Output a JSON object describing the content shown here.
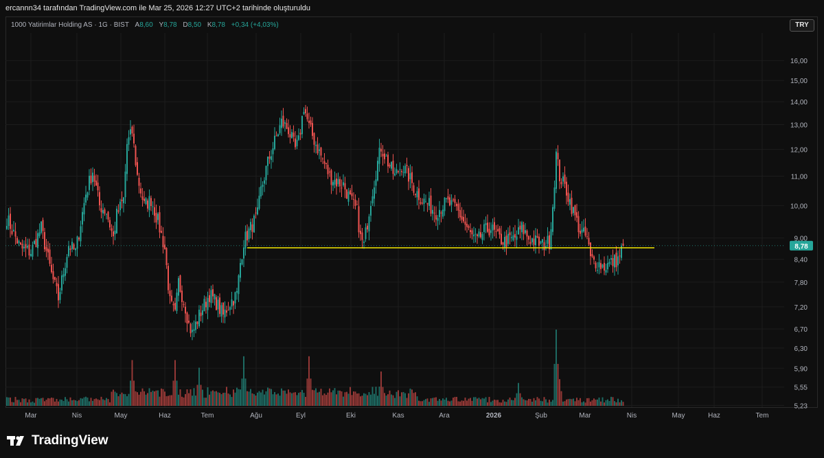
{
  "caption": "ercannn34 tarafından TradingView.com ile Mar 25, 2026 12:27 UTC+2 tarihinde oluşturuldu",
  "legend": {
    "title": "1000 Yatirimlar Holding AS · 1G · BIST",
    "a_label": "A",
    "a_val": "8,60",
    "y_label": "Y",
    "y_val": "8,78",
    "d_label": "D",
    "d_val": "8,50",
    "k_label": "K",
    "k_val": "8,78",
    "change": "+0,34 (+4,03%)"
  },
  "currency": "TRY",
  "brand": "TradingView",
  "colors": {
    "up": "#26a69a",
    "down": "#ef5350",
    "support": "#f2e600",
    "grid": "#1c1c1c"
  },
  "chart_data": {
    "type": "candlestick",
    "title": "1000 Yatirimlar Holding AS · 1G · BIST",
    "scale": "log",
    "ylim": [
      5.2,
      17.5
    ],
    "y_ticks": [
      "16,00",
      "15,00",
      "14,00",
      "13,00",
      "12,00",
      "11,00",
      "10,00",
      "9,00",
      "8,40",
      "7,80",
      "7,20",
      "6,70",
      "6,30",
      "5,90",
      "5,55",
      "5,23"
    ],
    "y_tick_values": [
      16.0,
      15.0,
      14.0,
      13.0,
      12.0,
      11.0,
      10.0,
      9.0,
      8.4,
      7.8,
      7.2,
      6.7,
      6.3,
      5.9,
      5.55,
      5.23
    ],
    "x_ticks": [
      "Mar",
      "Nis",
      "May",
      "Haz",
      "Tem",
      "Ağu",
      "Eyl",
      "Eki",
      "Kas",
      "Ara",
      "2026",
      "Şub",
      "Mar",
      "Nis",
      "May",
      "Haz",
      "Tem"
    ],
    "last_price_label": "8,78",
    "last_price": 8.78,
    "support_level": 8.72,
    "anchors": [
      [
        0,
        9.6
      ],
      [
        8,
        8.7
      ],
      [
        14,
        8.6
      ],
      [
        20,
        9.3
      ],
      [
        26,
        8.0
      ],
      [
        30,
        7.4
      ],
      [
        36,
        8.8
      ],
      [
        40,
        8.6
      ],
      [
        46,
        10.4
      ],
      [
        50,
        11.2
      ],
      [
        54,
        10.0
      ],
      [
        58,
        9.8
      ],
      [
        62,
        9.0
      ],
      [
        64,
        9.7
      ],
      [
        68,
        10.2
      ],
      [
        70,
        12.2
      ],
      [
        73,
        12.7
      ],
      [
        76,
        11.0
      ],
      [
        80,
        10.0
      ],
      [
        84,
        10.2
      ],
      [
        88,
        9.5
      ],
      [
        92,
        8.7
      ],
      [
        95,
        7.3
      ],
      [
        98,
        7.0
      ],
      [
        100,
        7.8
      ],
      [
        104,
        7.2
      ],
      [
        106,
        6.8
      ],
      [
        108,
        6.6
      ],
      [
        112,
        7.0
      ],
      [
        118,
        7.5
      ],
      [
        122,
        7.3
      ],
      [
        126,
        7.0
      ],
      [
        130,
        7.3
      ],
      [
        134,
        7.5
      ],
      [
        136,
        8.3
      ],
      [
        138,
        8.9
      ],
      [
        142,
        9.3
      ],
      [
        146,
        9.7
      ],
      [
        148,
        10.5
      ],
      [
        152,
        11.5
      ],
      [
        156,
        12.3
      ],
      [
        160,
        13.1
      ],
      [
        164,
        12.8
      ],
      [
        168,
        12.0
      ],
      [
        170,
        12.3
      ],
      [
        173,
        13.8
      ],
      [
        176,
        12.9
      ],
      [
        180,
        12.2
      ],
      [
        184,
        11.6
      ],
      [
        188,
        11.0
      ],
      [
        192,
        10.8
      ],
      [
        196,
        10.7
      ],
      [
        200,
        10.2
      ],
      [
        204,
        9.8
      ],
      [
        206,
        9.0
      ],
      [
        208,
        8.8
      ],
      [
        212,
        10.2
      ],
      [
        216,
        11.5
      ],
      [
        218,
        12.1
      ],
      [
        222,
        11.5
      ],
      [
        226,
        11.0
      ],
      [
        230,
        11.4
      ],
      [
        234,
        11.0
      ],
      [
        238,
        10.5
      ],
      [
        242,
        10.2
      ],
      [
        246,
        10.0
      ],
      [
        250,
        9.8
      ],
      [
        256,
        10.1
      ],
      [
        262,
        9.9
      ],
      [
        266,
        9.5
      ],
      [
        270,
        9.1
      ],
      [
        274,
        8.9
      ],
      [
        278,
        9.2
      ],
      [
        282,
        9.3
      ],
      [
        286,
        9.0
      ],
      [
        290,
        8.9
      ],
      [
        296,
        9.0
      ],
      [
        300,
        9.3
      ],
      [
        304,
        9.0
      ],
      [
        308,
        8.9
      ],
      [
        312,
        8.8
      ],
      [
        316,
        8.9
      ],
      [
        318,
        10.0
      ],
      [
        320,
        11.8
      ],
      [
        322,
        11.0
      ],
      [
        326,
        10.5
      ],
      [
        330,
        9.8
      ],
      [
        334,
        9.2
      ],
      [
        338,
        9.0
      ],
      [
        340,
        8.4
      ],
      [
        344,
        8.3
      ],
      [
        348,
        8.2
      ],
      [
        352,
        8.3
      ],
      [
        356,
        8.4
      ],
      [
        359,
        8.78
      ]
    ],
    "volume_spikes": [
      [
        73,
        0.6
      ],
      [
        98,
        0.6
      ],
      [
        112,
        0.5
      ],
      [
        138,
        0.65
      ],
      [
        176,
        0.65
      ],
      [
        218,
        0.45
      ],
      [
        298,
        0.3
      ],
      [
        320,
        1.0
      ],
      [
        322,
        0.35
      ]
    ]
  }
}
